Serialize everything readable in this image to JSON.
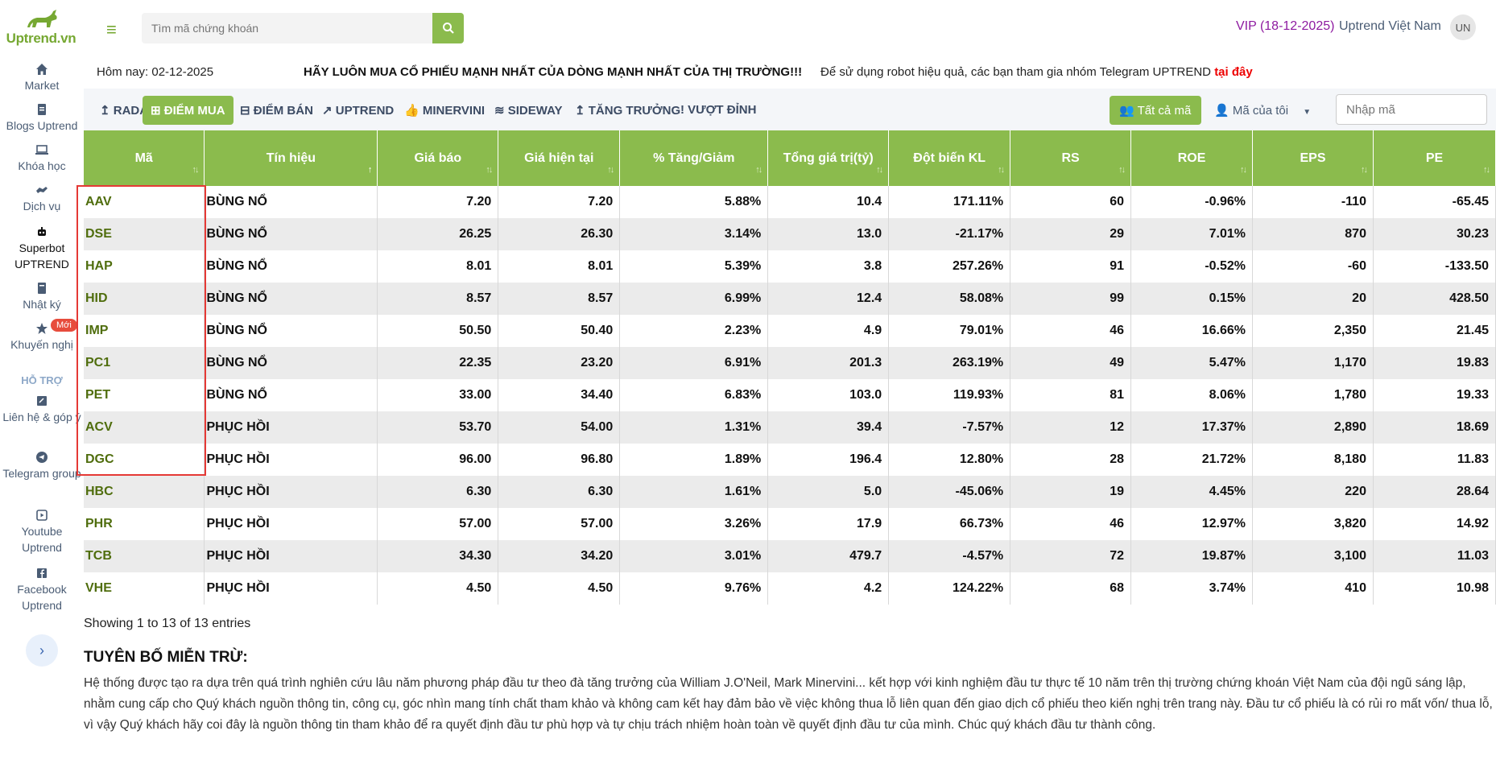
{
  "brand": {
    "name": "Uptrend.vn"
  },
  "sidebar": {
    "items": [
      {
        "label": "Market",
        "icon": "home-icon"
      },
      {
        "label": "Blogs Uptrend",
        "icon": "document-icon"
      },
      {
        "label": "Khóa học",
        "icon": "laptop-icon"
      },
      {
        "label": "Dịch vụ",
        "icon": "handshake-icon"
      },
      {
        "label": "Superbot UPTREND",
        "icon": "robot-icon"
      },
      {
        "label": "Nhật ký",
        "icon": "book-icon"
      },
      {
        "label": "Khuyến nghị",
        "icon": "star-icon"
      }
    ],
    "new_badge": "Mới",
    "support_heading": "HỖ TRỢ",
    "support_items": [
      {
        "label": "Liên hệ & góp ý",
        "icon": "feedback-icon"
      },
      {
        "label": "Telegram group",
        "icon": "telegram-icon"
      },
      {
        "label": "Youtube Uptrend",
        "icon": "youtube-icon"
      },
      {
        "label": "Facebook Uptrend",
        "icon": "facebook-icon"
      }
    ]
  },
  "header": {
    "search_placeholder": "Tìm mã chứng khoán",
    "vip": "VIP (18-12-2025)",
    "user_name": "Uptrend Việt Nam",
    "avatar_initials": "UN"
  },
  "info": {
    "today": "Hôm nay: 02-12-2025",
    "slogan": "HÃY LUÔN MUA CỔ PHIẾU MẠNH NHẤT CỦA DÒNG MẠNH NHẤT CỦA THỊ TRƯỜNG!!!",
    "telegram_note": "Để sử dụng robot hiệu quả, các bạn tham gia nhóm Telegram UPTREND ",
    "telegram_link": "tại đây"
  },
  "tabs": [
    {
      "label": "RADAR",
      "icon": "↥"
    },
    {
      "label": "ĐIỂM MUA",
      "icon": "⊞"
    },
    {
      "label": "ĐIỂM BÁN",
      "icon": "⊟"
    },
    {
      "label": "UPTREND",
      "icon": "↗"
    },
    {
      "label": "MINERVINI",
      "icon": "👍"
    },
    {
      "label": "SIDEWAY",
      "icon": "≋"
    },
    {
      "label": "TĂNG TRƯỞNG",
      "icon": "↥"
    },
    {
      "label": "VƯỢT ĐỈNH",
      "icon": "!"
    }
  ],
  "filters": {
    "all_codes": "Tất cả mã",
    "my_codes": "Mã của tôi",
    "code_input_placeholder": "Nhập mã"
  },
  "table": {
    "columns": [
      "Mã",
      "Tín hiệu",
      "Giá báo",
      "Giá hiện tại",
      "% Tăng/Giảm",
      "Tổng giá trị(tỷ)",
      "Đột biến KL",
      "RS",
      "ROE",
      "EPS",
      "PE"
    ],
    "rows": [
      [
        "AAV",
        "BÙNG NỔ",
        "7.20",
        "7.20",
        "5.88%",
        "10.4",
        "171.11%",
        "60",
        "-0.96%",
        "-110",
        "-65.45"
      ],
      [
        "DSE",
        "BÙNG NỔ",
        "26.25",
        "26.30",
        "3.14%",
        "13.0",
        "-21.17%",
        "29",
        "7.01%",
        "870",
        "30.23"
      ],
      [
        "HAP",
        "BÙNG NỔ",
        "8.01",
        "8.01",
        "5.39%",
        "3.8",
        "257.26%",
        "91",
        "-0.52%",
        "-60",
        "-133.50"
      ],
      [
        "HID",
        "BÙNG NỔ",
        "8.57",
        "8.57",
        "6.99%",
        "12.4",
        "58.08%",
        "99",
        "0.15%",
        "20",
        "428.50"
      ],
      [
        "IMP",
        "BÙNG NỔ",
        "50.50",
        "50.40",
        "2.23%",
        "4.9",
        "79.01%",
        "46",
        "16.66%",
        "2,350",
        "21.45"
      ],
      [
        "PC1",
        "BÙNG NỔ",
        "22.35",
        "23.20",
        "6.91%",
        "201.3",
        "263.19%",
        "49",
        "5.47%",
        "1,170",
        "19.83"
      ],
      [
        "PET",
        "BÙNG NỔ",
        "33.00",
        "34.40",
        "6.83%",
        "103.0",
        "119.93%",
        "81",
        "8.06%",
        "1,780",
        "19.33"
      ],
      [
        "ACV",
        "PHỤC HỒI",
        "53.70",
        "54.00",
        "1.31%",
        "39.4",
        "-7.57%",
        "12",
        "17.37%",
        "2,890",
        "18.69"
      ],
      [
        "DGC",
        "PHỤC HỒI",
        "96.00",
        "96.80",
        "1.89%",
        "196.4",
        "12.80%",
        "28",
        "21.72%",
        "8,180",
        "11.83"
      ],
      [
        "HBC",
        "PHỤC HỒI",
        "6.30",
        "6.30",
        "1.61%",
        "5.0",
        "-45.06%",
        "19",
        "4.45%",
        "220",
        "28.64"
      ],
      [
        "PHR",
        "PHỤC HỒI",
        "57.00",
        "57.00",
        "3.26%",
        "17.9",
        "66.73%",
        "46",
        "12.97%",
        "3,820",
        "14.92"
      ],
      [
        "TCB",
        "PHỤC HỒI",
        "34.30",
        "34.20",
        "3.01%",
        "479.7",
        "-4.57%",
        "72",
        "19.87%",
        "3,100",
        "11.03"
      ],
      [
        "VHE",
        "PHỤC HỒI",
        "4.50",
        "4.50",
        "9.76%",
        "4.2",
        "124.22%",
        "68",
        "3.74%",
        "410",
        "10.98"
      ]
    ]
  },
  "entries": "Showing 1 to 13 of 13 entries",
  "disclaimer": {
    "title": "TUYÊN BỐ MIỄN TRỪ:",
    "text": "Hệ thống được tạo ra dựa trên quá trình nghiên cứu lâu năm phương pháp đầu tư theo đà tăng trưởng của William J.O'Neil, Mark Minervini... kết hợp với kinh nghiệm đầu tư thực tế 10 năm trên thị trường chứng khoán Việt Nam của đội ngũ sáng lập, nhằm cung cấp cho Quý khách nguồn thông tin, công cụ, góc nhìn mang tính chất tham khảo và không cam kết hay đảm bảo về việc không thua lỗ liên quan đến giao dịch cổ phiếu theo kiến nghị trên trang này. Đầu tư cổ phiếu là có rủi ro mất vốn/ thua lỗ, vì vậy Quý khách hãy coi đây là nguồn thông tin tham khảo để ra quyết định đầu tư phù hợp và tự chịu trách nhiệm hoàn toàn về quyết định đầu tư của mình. Chúc quý khách đầu tư thành công."
  },
  "colors": {
    "brand_green": "#8bbb4d",
    "signal_boom": "#a014bf",
    "highlight_box": "#e53935"
  }
}
